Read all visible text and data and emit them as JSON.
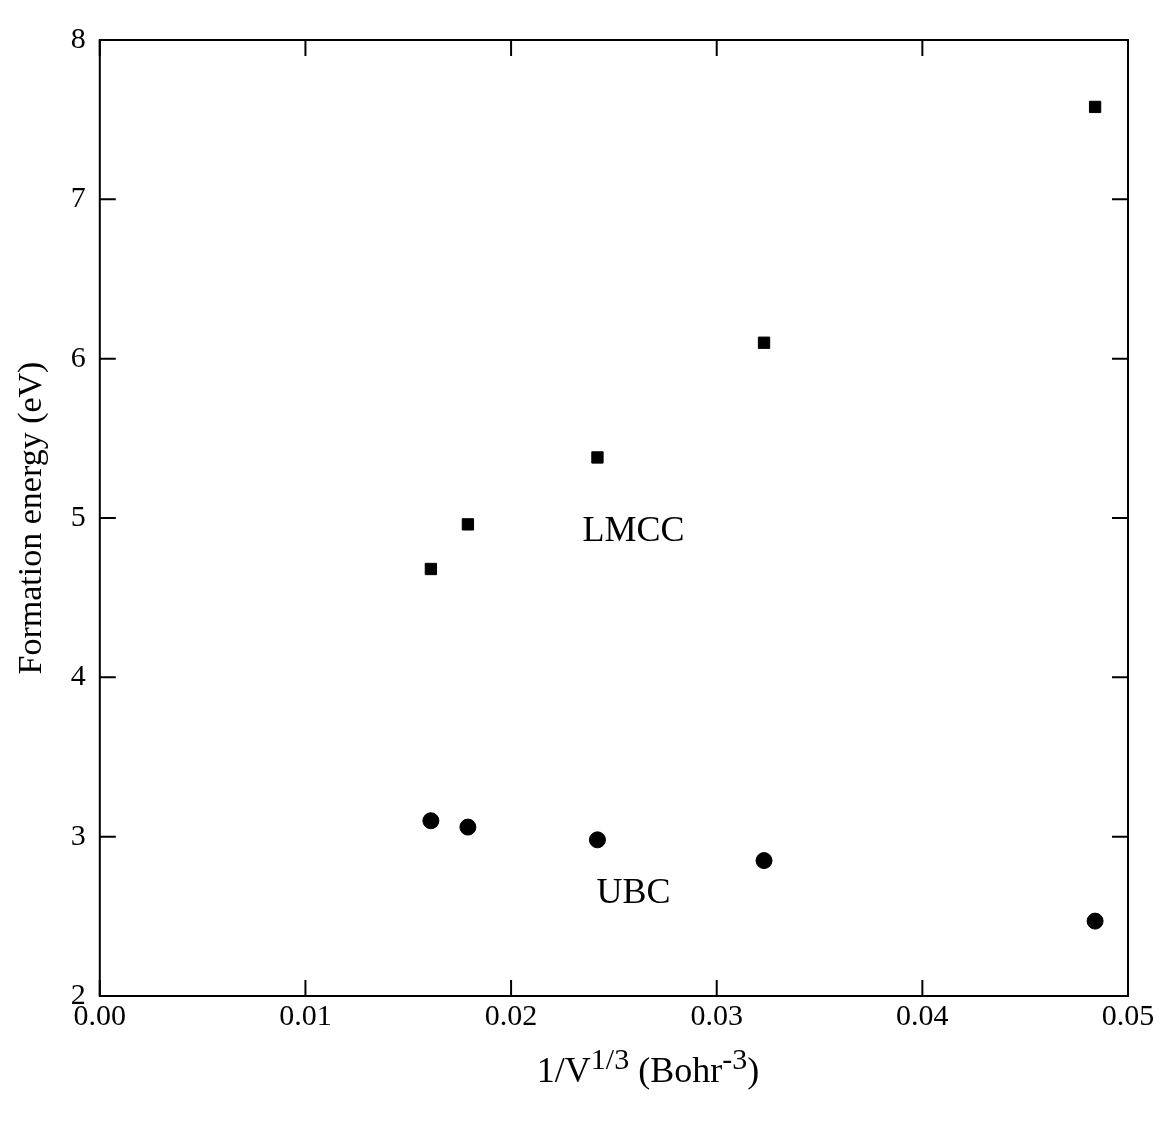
{
  "chart_data": {
    "type": "scatter",
    "xlabel": "1/V$^{1/3}$ (Bohr$^{-3}$)",
    "ylabel": "Formation energy (eV)",
    "xlim": [
      0,
      0.05
    ],
    "xticks": [
      {
        "value": 0,
        "label": "0.00"
      },
      {
        "value": 0.01,
        "label": "0.01"
      },
      {
        "value": 0.02,
        "label": "0.02"
      },
      {
        "value": 0.03,
        "label": "0.03"
      },
      {
        "value": 0.04,
        "label": "0.04"
      },
      {
        "value": 0.05,
        "label": "0.05"
      }
    ],
    "ylim": [
      2,
      8
    ],
    "yticks": [
      2,
      3,
      4,
      5,
      6,
      7,
      8
    ],
    "grid": false,
    "legend": false,
    "series": [
      {
        "name": "LMCC",
        "color": "#000000",
        "marker": "square",
        "x": [
          0.0161,
          0.0179,
          0.0242,
          0.0323,
          0.0484
        ],
        "values": [
          4.68,
          4.96,
          5.38,
          6.1,
          7.58
        ]
      },
      {
        "name": "UBC",
        "color": "#000000",
        "marker": "circle",
        "x": [
          0.0161,
          0.0179,
          0.0242,
          0.0323,
          0.0484
        ],
        "values": [
          3.1,
          3.06,
          2.98,
          2.85,
          2.47
        ]
      }
    ]
  }
}
